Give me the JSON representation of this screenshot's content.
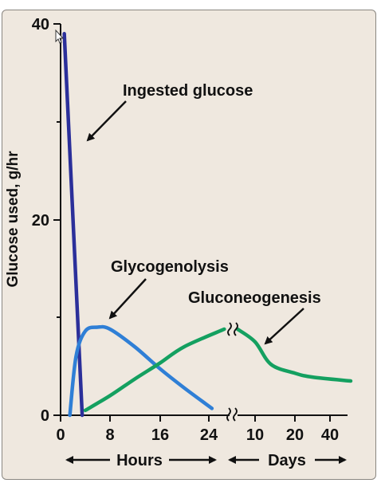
{
  "chart_data": {
    "type": "line",
    "title": "",
    "ylabel": "Glucose used, g/hr",
    "ylim": [
      0,
      40
    ],
    "y_ticks": [
      "0",
      "20",
      "40"
    ],
    "x_ticks": [
      "0",
      "8",
      "16",
      "24",
      "10",
      "20",
      "40"
    ],
    "x_segments": [
      {
        "label": "Hours",
        "unit": "hours",
        "ticks": [
          0,
          8,
          16,
          24
        ]
      },
      {
        "label": "Days",
        "unit": "days",
        "ticks": [
          10,
          20,
          40
        ]
      }
    ],
    "axis_break": true,
    "series": [
      {
        "name": "Ingested glucose",
        "color": "#2b2f9a",
        "points": [
          [
            0.6,
            39
          ],
          [
            3.5,
            0
          ]
        ]
      },
      {
        "name": "Glycogenolysis",
        "color": "#2f7fd6",
        "points": [
          [
            1.5,
            0
          ],
          [
            2.5,
            6
          ],
          [
            4,
            8.6
          ],
          [
            6,
            9
          ],
          [
            8,
            8.8
          ],
          [
            12,
            7
          ],
          [
            16,
            4.8
          ],
          [
            20,
            2.8
          ],
          [
            24.5,
            0.7
          ]
        ]
      },
      {
        "name": "Gluconeogenesis",
        "color": "#14a060",
        "points": [
          [
            4,
            0.5
          ],
          [
            8,
            2
          ],
          [
            12,
            3.7
          ],
          [
            16,
            5.3
          ],
          [
            20,
            7
          ],
          [
            26.5,
            8.8
          ]
        ],
        "points_days": [
          [
            7,
            8.8
          ],
          [
            10,
            7.5
          ],
          [
            14,
            5.2
          ],
          [
            20,
            4.3
          ],
          [
            30,
            3.9
          ],
          [
            45,
            3.5
          ]
        ]
      }
    ]
  }
}
